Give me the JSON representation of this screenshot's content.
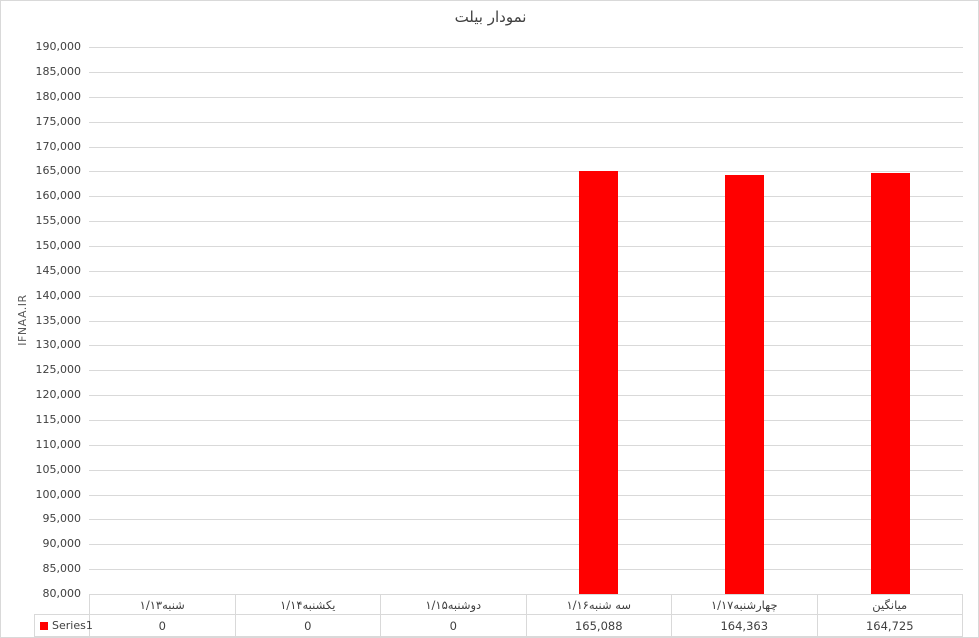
{
  "chart_data": {
    "type": "bar",
    "title": "نمودار بیلت",
    "xlabel": "",
    "ylabel": "IFNAA.IR",
    "categories": [
      "شنبه۱/۱۳",
      "یکشنبه۱/۱۴",
      "دوشنبه۱/۱۵",
      "سه شنبه۱/۱۶",
      "چهارشنبه۱/۱۷",
      "میانگین"
    ],
    "series": [
      {
        "name": "Series1",
        "color": "#FF0000",
        "values": [
          0,
          0,
          0,
          165088,
          164363,
          164725
        ],
        "value_labels": [
          "0",
          "0",
          "0",
          "165,088",
          "164,363",
          "164,725"
        ]
      }
    ],
    "ylim": [
      80000,
      190000
    ],
    "ytick_step": 5000,
    "grid": true,
    "legend_position": "data-table-left",
    "data_table": true
  },
  "colors": {
    "bar": "#FF0000",
    "gridline": "#D9D9D9",
    "frame_border": "#D9D9D9",
    "axis_text": "#404040",
    "title_text": "#404040",
    "background": "#FFFFFF"
  }
}
